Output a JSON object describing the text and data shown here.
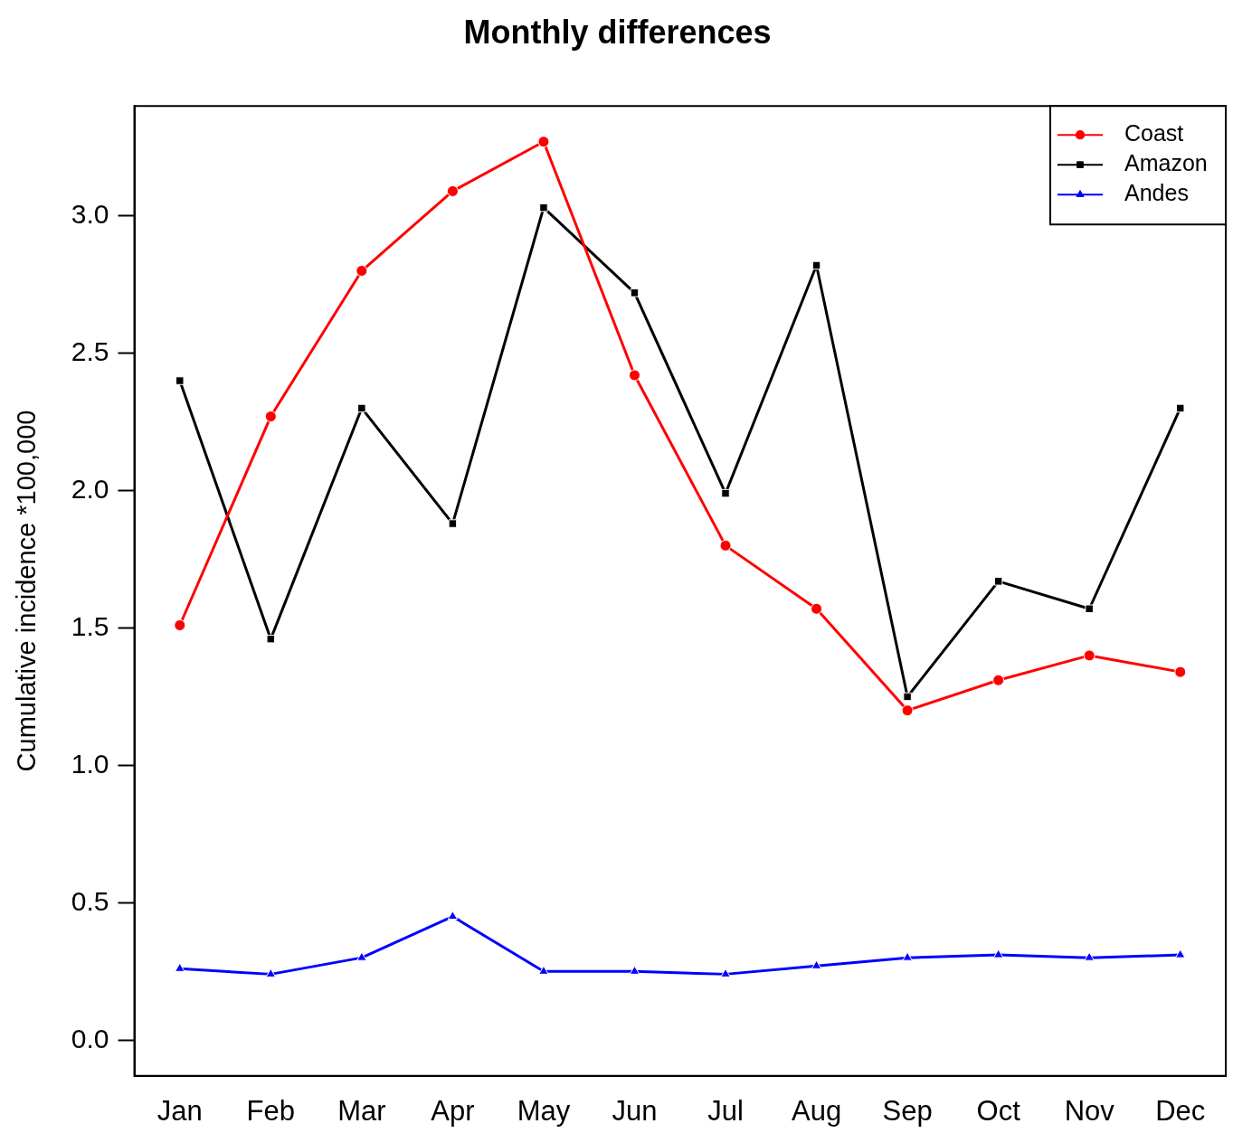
{
  "chart_data": {
    "type": "line",
    "title": "Monthly differences",
    "ylabel": "Cumulative incidence *100,000",
    "categories": [
      "Jan",
      "Feb",
      "Mar",
      "Apr",
      "May",
      "Jun",
      "Jul",
      "Aug",
      "Sep",
      "Oct",
      "Nov",
      "Dec"
    ],
    "series": [
      {
        "name": "Coast",
        "color": "#ff0000",
        "marker": "circle",
        "values": [
          1.51,
          2.27,
          2.8,
          3.09,
          3.27,
          2.42,
          1.8,
          1.57,
          1.2,
          1.31,
          1.4,
          1.34
        ]
      },
      {
        "name": "Amazon",
        "color": "#000000",
        "marker": "square",
        "values": [
          2.4,
          1.46,
          2.3,
          1.88,
          3.03,
          2.72,
          1.99,
          2.82,
          1.25,
          1.67,
          1.57,
          2.3
        ]
      },
      {
        "name": "Andes",
        "color": "#0000ff",
        "marker": "triangle",
        "values": [
          0.26,
          0.24,
          0.3,
          0.45,
          0.25,
          0.25,
          0.24,
          0.27,
          0.3,
          0.31,
          0.3,
          0.31
        ]
      }
    ],
    "ylim": [
      -0.13,
      3.4
    ],
    "yticks": [
      {
        "value": 0,
        "label": "0.0"
      },
      {
        "value": 0.5,
        "label": "0.5"
      },
      {
        "value": 1,
        "label": "1.0"
      },
      {
        "value": 1.5,
        "label": "1.5"
      },
      {
        "value": 2,
        "label": "2.0"
      },
      {
        "value": 2.5,
        "label": "2.5"
      },
      {
        "value": 3,
        "label": "3.0"
      }
    ],
    "legend": "top right",
    "grid": false,
    "line_style": "solid"
  }
}
